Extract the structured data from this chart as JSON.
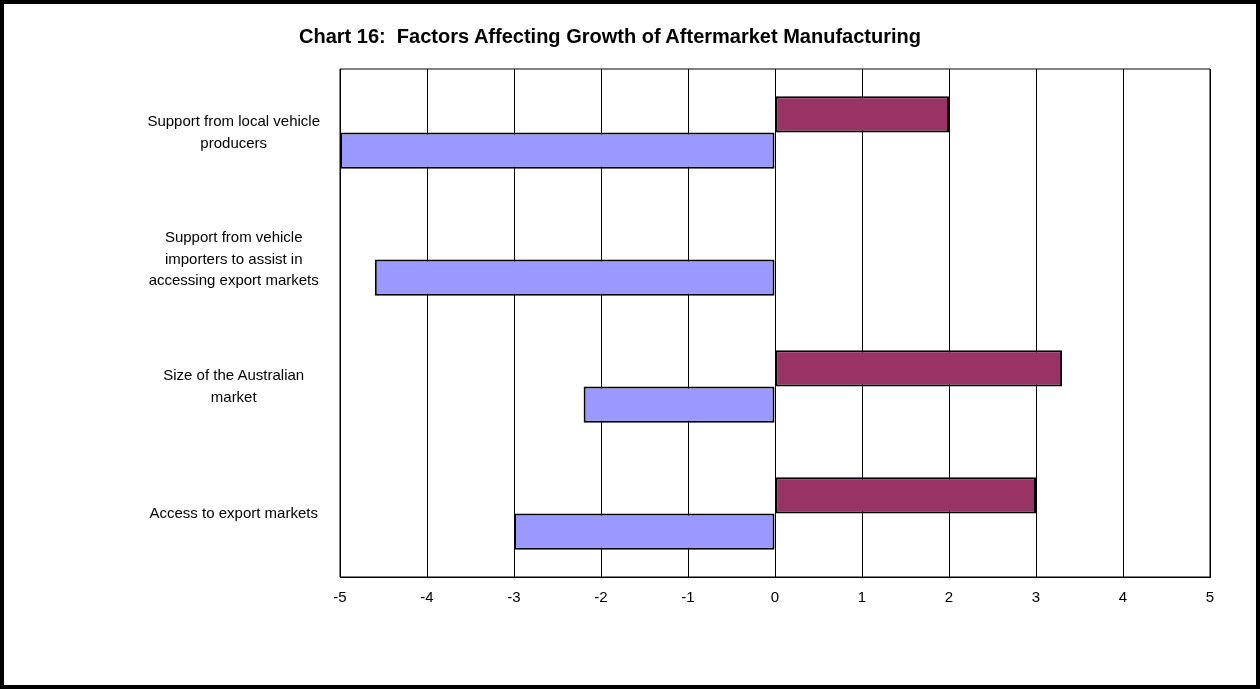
{
  "chart_data": {
    "type": "bar",
    "orientation": "horizontal",
    "title": "Chart 16:  Factors Affecting Growth of Aftermarket Manufacturing",
    "categories": [
      "Support from local vehicle producers",
      "Support from vehicle importers to assist in accessing export markets",
      "Size of the Australian market",
      "Access to export markets"
    ],
    "series": [
      {
        "color": "#993366",
        "values": [
          2,
          null,
          3.3,
          3
        ]
      },
      {
        "color": "#9999ff",
        "values": [
          -5,
          -4.6,
          -2.2,
          -3
        ]
      }
    ],
    "xlim": [
      -5,
      5
    ],
    "xticks": [
      -5,
      -4,
      -3,
      -2,
      -1,
      0,
      1,
      2,
      3,
      4,
      5
    ],
    "grid": "x",
    "legend": false
  }
}
